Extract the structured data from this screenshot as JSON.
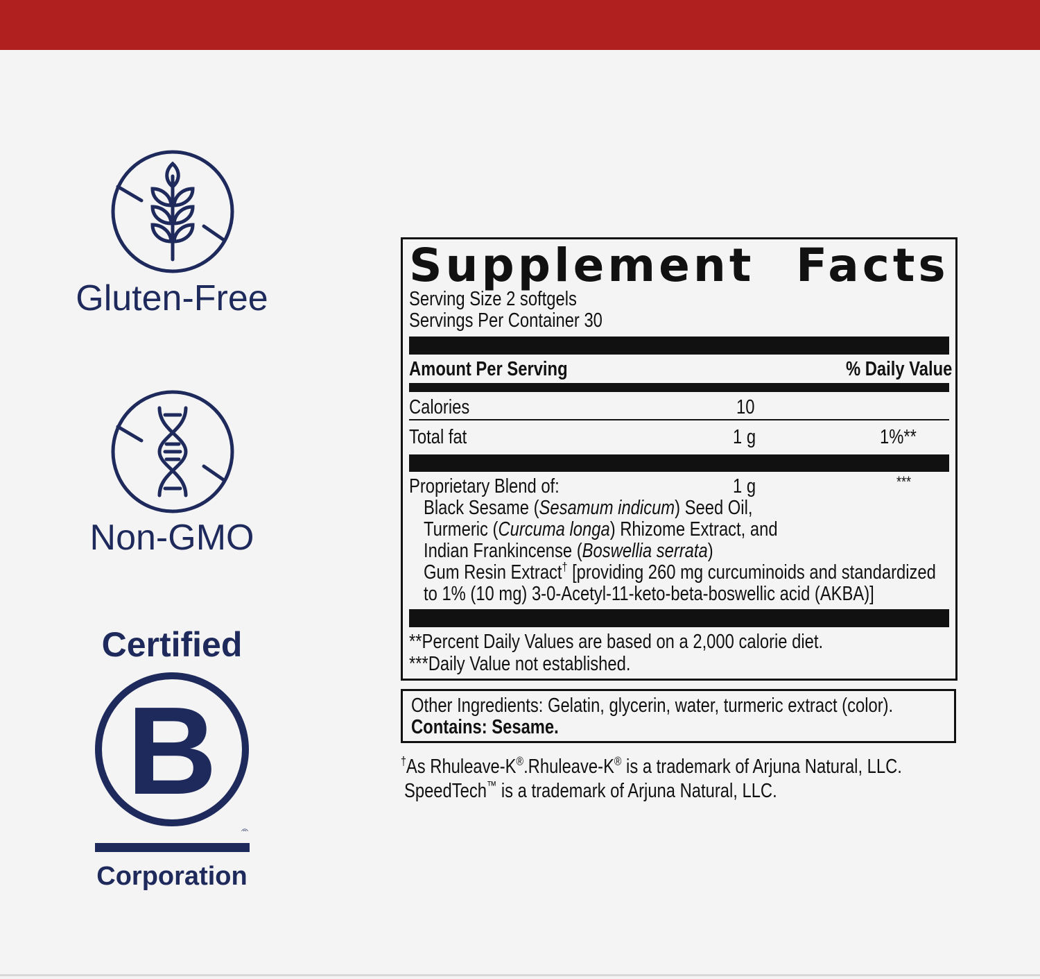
{
  "colors": {
    "top_band": "#b0201e",
    "badge_navy": "#1f2a5c",
    "label_ink": "#111111",
    "background": "#f4f4f4"
  },
  "badges": [
    {
      "icon": "gluten-free-wheat-icon",
      "label": "Gluten-Free"
    },
    {
      "icon": "non-gmo-dna-icon",
      "label": "Non-GMO"
    },
    {
      "icon": "b-corp-logo",
      "top": "Certified",
      "bottom": "Corporation",
      "logo_letter": "B",
      "mark": "®"
    }
  ],
  "facts": {
    "title_left": "Supplement",
    "title_right": "Facts",
    "serving_size": "Serving Size 2 softgels",
    "servings_per_container": "Servings Per Container 30",
    "amount_header": "Amount Per Serving",
    "dv_header": "% Daily Value",
    "rows": [
      {
        "name": "Calories",
        "amount": "10",
        "dv": ""
      },
      {
        "name": "Total fat",
        "amount": "1 g",
        "dv": "1%**"
      },
      {
        "name": "Proprietary Blend of:",
        "amount": "1 g",
        "dv": "***"
      }
    ],
    "blend": {
      "l1a": "Black Sesame (",
      "l1i": "Sesamum indicum",
      "l1b": ") Seed Oil,",
      "l2a": "Turmeric (",
      "l2i": "Curcuma longa",
      "l2b": ") Rhizome Extract, and",
      "l3a": "Indian Frankincense (",
      "l3i": "Boswellia serrata",
      "l3b": ")",
      "l4a": "Gum Resin Extract",
      "l4dag": "†",
      "l4b": " [providing 260 mg curcuminoids and standardized",
      "l5": "to 1% (10 mg) 3-0-Acetyl-11-keto-beta-boswellic acid (AKBA)]"
    },
    "footnote1": " **Percent Daily Values are based on a 2,000 calorie diet.",
    "footnote2": "***Daily Value not established."
  },
  "other": {
    "ingredients": "Other Ingredients: Gelatin, glycerin, water, turmeric extract (color).",
    "contains": "Contains: Sesame."
  },
  "trademarks": {
    "dag": "†",
    "a": "As Rhuleave-K",
    "r1": "®",
    "b": ".Rhuleave-K",
    "r2": "®",
    "c": " is a trademark of Arjuna Natural, LLC.",
    "d": "SpeedTech",
    "tm": "™",
    "e": " is a trademark of Arjuna Natural, LLC."
  }
}
